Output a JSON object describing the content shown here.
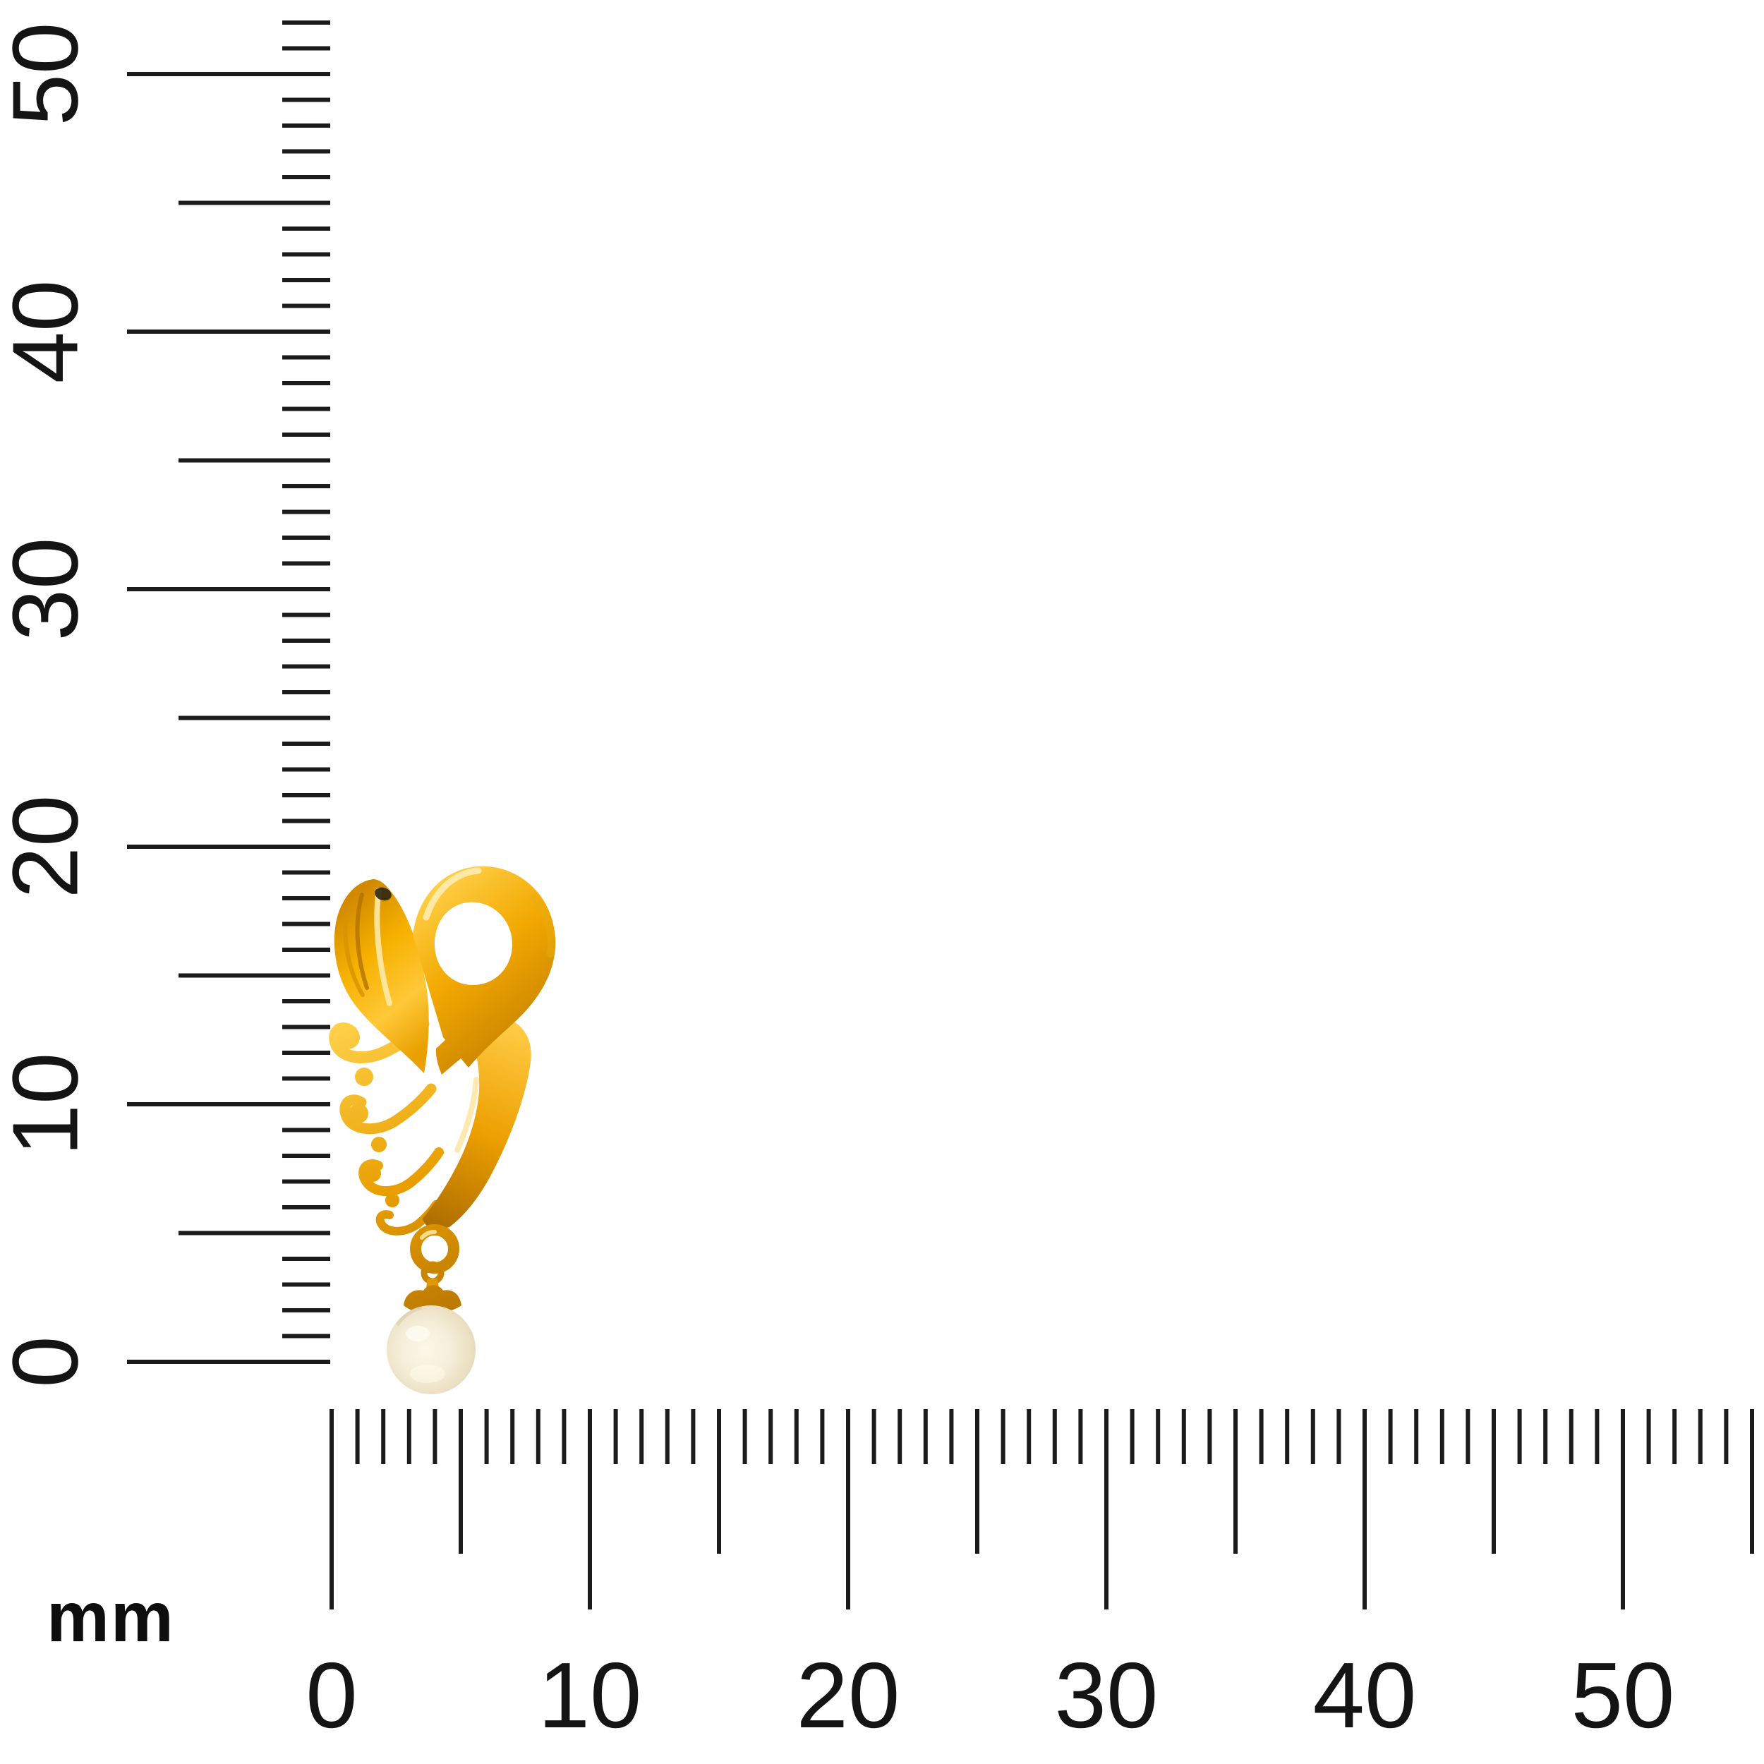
{
  "scene": {
    "type": "product photo with millimetre scale",
    "background_color": "#ffffff"
  },
  "unit_caption": {
    "text": "mm"
  },
  "rulers": {
    "tick_color": "#1b1b1b",
    "label_color": "#141414",
    "vertical": {
      "unit": "mm",
      "labels": [
        "0",
        "10",
        "20",
        "30",
        "40",
        "50"
      ],
      "label_values_mm": [
        0,
        10,
        20,
        30,
        40,
        50
      ],
      "minor_tick_every_mm": 1,
      "medium_tick_every_mm": 5,
      "major_tick_every_mm": 10,
      "visible_range_mm": [
        0,
        53
      ],
      "label_rotation_deg": -90,
      "side": "left"
    },
    "horizontal": {
      "unit": "mm",
      "labels": [
        "0",
        "10",
        "20",
        "30",
        "40",
        "50"
      ],
      "label_values_mm": [
        0,
        10,
        20,
        30,
        40,
        50
      ],
      "minor_tick_every_mm": 1,
      "medium_tick_every_mm": 5,
      "major_tick_every_mm": 10,
      "visible_range_mm": [
        0,
        55
      ],
      "label_rotation_deg": 0,
      "side": "bottom"
    }
  },
  "subject": {
    "name": "yellow-gold swirl heart earring with pearl drop",
    "parts": [
      "grooved teardrop petal",
      "ribbon loop",
      "leaf fronds with gold beads",
      "tapered stem",
      "connector ring",
      "bail loop",
      "wavy gold cap",
      "pearl drop"
    ],
    "measured_against_rulers": {
      "height_mm": 20,
      "width_mm": 8.5
    },
    "colors": {
      "gold_base": "#F2A800",
      "gold_light": "#FFD34E",
      "gold_highlight": "#FFEDB0",
      "gold_dark": "#BE7C00",
      "gold_deep": "#8F5A00",
      "pearl_body": "#F3EAD3",
      "pearl_rim": "#D0C2A0",
      "pearl_highlight": "#FDFBF0",
      "reflection_spot": "#2E2610"
    }
  }
}
